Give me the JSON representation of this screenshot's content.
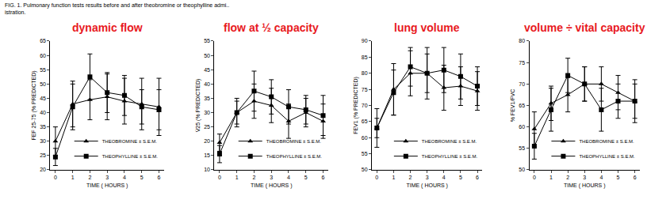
{
  "caption": [
    "FIG. 1. Pulmonary function tests results before and after theobromine or theophylline admi..",
    "istration."
  ],
  "chart_data": [
    {
      "type": "line",
      "title": "dynamic flow",
      "x_label": "TIME ( HOURS )",
      "y_label": "FEF 25-75 (% PREDICTED)",
      "x": [
        0,
        1,
        2,
        3,
        4,
        5,
        6
      ],
      "xlim": [
        -0.3,
        6.3
      ],
      "xticks": [
        0,
        1,
        2,
        3,
        4,
        5,
        6
      ],
      "ylim": [
        20,
        65
      ],
      "yticks": [
        20,
        25,
        30,
        35,
        40,
        45,
        50,
        55,
        60,
        65
      ],
      "grid": false,
      "legend": "lower center",
      "series": [
        {
          "name": "THEOBROMINE ± S.E.M.",
          "color": "#000000",
          "marker": "triangle-up",
          "values": [
            30,
            43,
            44.5,
            45.5,
            44,
            43,
            42
          ],
          "errors": [
            5,
            8,
            7,
            8,
            8,
            9,
            10
          ]
        },
        {
          "name": "THEOPHYLLINE ± S.E.M.",
          "color": "#000000",
          "marker": "square",
          "values": [
            24.5,
            42,
            52.5,
            47,
            46,
            42,
            41
          ],
          "errors": [
            3,
            8,
            8,
            7,
            7,
            6,
            7
          ]
        }
      ]
    },
    {
      "type": "line",
      "title": "flow at ½ capacity",
      "x_label": "TIME ( HOURS )",
      "y_label": "V̇25 (% PREDICTED)",
      "x": [
        0,
        1,
        2,
        3,
        4,
        5,
        6
      ],
      "xlim": [
        -0.3,
        6.3
      ],
      "xticks": [
        0,
        1,
        2,
        3,
        4,
        5,
        6
      ],
      "ylim": [
        10,
        55
      ],
      "yticks": [
        10,
        15,
        20,
        25,
        30,
        35,
        40,
        45,
        50,
        55
      ],
      "grid": false,
      "legend": "lower center",
      "series": [
        {
          "name": "THEOBROMINE ± S.E.M.",
          "color": "#000000",
          "marker": "triangle-up",
          "values": [
            19.5,
            30,
            34,
            32.5,
            27,
            30,
            27
          ],
          "errors": [
            3,
            5,
            6,
            6,
            6,
            5,
            6
          ]
        },
        {
          "name": "THEOPHYLLINE ± S.E.M.",
          "color": "#000000",
          "marker": "square",
          "values": [
            15.5,
            30,
            37.5,
            35.5,
            32,
            31,
            29
          ],
          "errors": [
            3,
            4,
            7,
            6,
            6,
            5,
            7
          ]
        }
      ]
    },
    {
      "type": "line",
      "title": "lung volume",
      "x_label": "TIME ( HOURS )",
      "y_label": "FEV1 (% PREDICTED)",
      "x": [
        0,
        1,
        2,
        3,
        4,
        5,
        6
      ],
      "xlim": [
        -0.3,
        6.3
      ],
      "xticks": [
        0,
        1,
        2,
        3,
        4,
        5,
        6
      ],
      "ylim": [
        50,
        90
      ],
      "yticks": [
        50,
        55,
        60,
        65,
        70,
        75,
        80,
        85,
        90
      ],
      "grid": false,
      "legend": "lower center",
      "series": [
        {
          "name": "THEOBROMINE ± S.E.M.",
          "color": "#000000",
          "marker": "triangle-up",
          "values": [
            63,
            75,
            80,
            80,
            75.5,
            76,
            74.5
          ],
          "errors": [
            6,
            8,
            7,
            8,
            7,
            6,
            6
          ]
        },
        {
          "name": "THEOPHYLLINE ± S.E.M.",
          "color": "#000000",
          "marker": "square",
          "values": [
            63,
            74,
            82,
            80,
            81,
            79,
            76
          ],
          "errors": [
            3,
            7,
            6,
            6,
            7,
            7,
            6
          ]
        }
      ]
    },
    {
      "type": "line",
      "title": "volume ÷ vital capacity",
      "x_label": "TIME ( HOURS )",
      "y_label": "% FEV1/FVC",
      "x": [
        0,
        1,
        2,
        3,
        4,
        5,
        6
      ],
      "xlim": [
        -0.3,
        6.3
      ],
      "xticks": [
        0,
        1,
        2,
        3,
        4,
        5,
        6
      ],
      "ylim": [
        50,
        80
      ],
      "yticks": [
        50,
        55,
        60,
        65,
        70,
        75,
        80
      ],
      "grid": false,
      "legend": "lower center",
      "series": [
        {
          "name": "THEOBROMINE ± S.E.M.",
          "color": "#000000",
          "marker": "triangle-up",
          "values": [
            59.5,
            65.5,
            67.5,
            70,
            70,
            68,
            66
          ],
          "errors": [
            4,
            4,
            4,
            4,
            4,
            4,
            4
          ]
        },
        {
          "name": "THEOPHYLLINE ± S.E.M.",
          "color": "#000000",
          "marker": "square",
          "values": [
            55.5,
            64,
            72,
            70,
            64,
            66,
            66
          ],
          "errors": [
            3,
            5,
            4,
            4,
            5,
            4,
            5
          ]
        }
      ]
    }
  ]
}
